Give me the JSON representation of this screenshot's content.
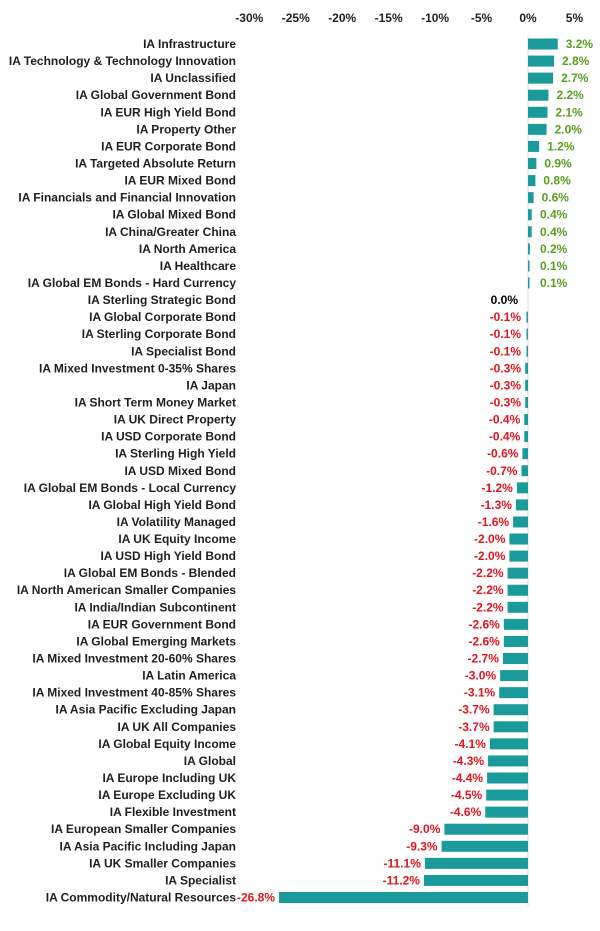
{
  "chart_data": {
    "type": "bar",
    "orientation": "horizontal",
    "title": "",
    "xlabel": "",
    "ylabel": "",
    "xlim": [
      -30,
      5
    ],
    "tick_values": [
      -30,
      -25,
      -20,
      -15,
      -10,
      -5,
      0,
      5
    ],
    "tick_labels": [
      "-30%",
      "-25%",
      "-20%",
      "-15%",
      "-10%",
      "-5%",
      "0%",
      "5%"
    ],
    "grid": false,
    "legend": "none",
    "colors": {
      "bar": "#1a9a9a",
      "positive_label": "#5a9e1f",
      "negative_label": "#e0141e",
      "zero_label": "#000000",
      "axis": "#d9d9d9"
    },
    "categories": [
      "IA Infrastructure",
      "IA Technology & Technology Innovation",
      "IA Unclassified",
      "IA Global Government Bond",
      "IA EUR High Yield Bond",
      "IA Property Other",
      "IA EUR Corporate Bond",
      "IA Targeted Absolute Return",
      "IA EUR Mixed Bond",
      "IA Financials and Financial Innovation",
      "IA Global Mixed Bond",
      "IA China/Greater China",
      "IA North America",
      "IA Healthcare",
      "IA Global EM Bonds - Hard Currency",
      "IA Sterling Strategic Bond",
      "IA Global Corporate Bond",
      "IA Sterling Corporate Bond",
      "IA Specialist Bond",
      "IA Mixed Investment 0-35% Shares",
      "IA Japan",
      "IA Short Term Money Market",
      "IA UK Direct Property",
      "IA USD Corporate Bond",
      "IA Sterling High Yield",
      "IA USD Mixed Bond",
      "IA Global EM Bonds - Local Currency",
      "IA Global High Yield Bond",
      "IA Volatility Managed",
      "IA UK Equity Income",
      "IA USD High Yield Bond",
      "IA Global EM Bonds - Blended",
      "IA North American Smaller Companies",
      "IA India/Indian Subcontinent",
      "IA EUR Government Bond",
      "IA Global Emerging Markets",
      "IA Mixed Investment 20-60% Shares",
      "IA Latin America",
      "IA Mixed Investment 40-85% Shares",
      "IA Asia Pacific Excluding Japan",
      "IA UK All Companies",
      "IA Global Equity Income",
      "IA Global",
      "IA Europe Including UK",
      "IA Europe Excluding UK",
      "IA Flexible Investment",
      "IA European Smaller Companies",
      "IA Asia Pacific Including Japan",
      "IA UK Smaller Companies",
      "IA Specialist",
      "IA Commodity/Natural Resources"
    ],
    "values": [
      3.2,
      2.8,
      2.7,
      2.2,
      2.1,
      2.0,
      1.2,
      0.9,
      0.8,
      0.6,
      0.4,
      0.4,
      0.2,
      0.1,
      0.1,
      0.0,
      -0.1,
      -0.1,
      -0.1,
      -0.3,
      -0.3,
      -0.3,
      -0.4,
      -0.4,
      -0.6,
      -0.7,
      -1.2,
      -1.3,
      -1.6,
      -2.0,
      -2.0,
      -2.2,
      -2.2,
      -2.2,
      -2.6,
      -2.6,
      -2.7,
      -3.0,
      -3.1,
      -3.7,
      -3.7,
      -4.1,
      -4.3,
      -4.4,
      -4.5,
      -4.6,
      -9.0,
      -9.3,
      -11.1,
      -11.2,
      -26.8
    ],
    "value_labels": [
      "3.2%",
      "2.8%",
      "2.7%",
      "2.2%",
      "2.1%",
      "2.0%",
      "1.2%",
      "0.9%",
      "0.8%",
      "0.6%",
      "0.4%",
      "0.4%",
      "0.2%",
      "0.1%",
      "0.1%",
      "0.0%",
      "-0.1%",
      "-0.1%",
      "-0.1%",
      "-0.3%",
      "-0.3%",
      "-0.3%",
      "-0.4%",
      "-0.4%",
      "-0.6%",
      "-0.7%",
      "-1.2%",
      "-1.3%",
      "-1.6%",
      "-2.0%",
      "-2.0%",
      "-2.2%",
      "-2.2%",
      "-2.2%",
      "-2.6%",
      "-2.6%",
      "-2.7%",
      "-3.0%",
      "-3.1%",
      "-3.7%",
      "-3.7%",
      "-4.1%",
      "-4.3%",
      "-4.4%",
      "-4.5%",
      "-4.6%",
      "-9.0%",
      "-9.3%",
      "-11.1%",
      "-11.2%",
      "-26.8%"
    ]
  }
}
